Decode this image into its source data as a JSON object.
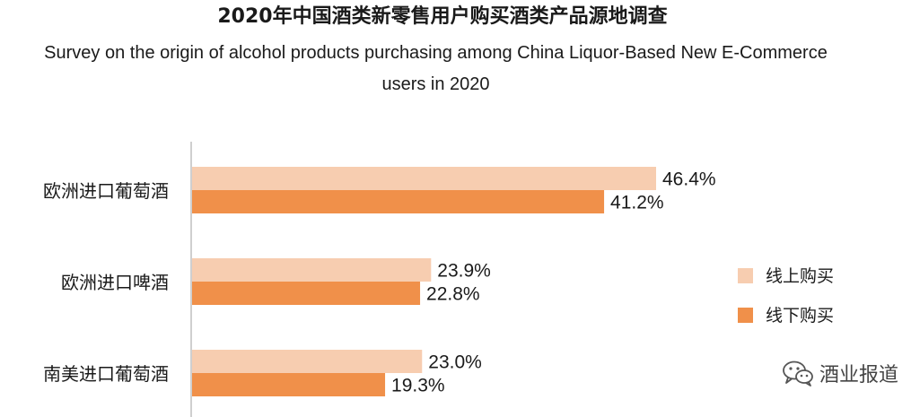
{
  "title": "2020年中国酒类新零售用户购买酒类产品源地调查",
  "subtitle": "Survey on the origin of alcohol products purchasing among China Liquor-Based New E-Commerce users in 2020",
  "watermark": "酒业报道",
  "chart_data": {
    "type": "bar",
    "orientation": "horizontal",
    "categories": [
      "欧洲进口葡萄酒",
      "欧洲进口啤酒",
      "南美进口葡萄酒"
    ],
    "series": [
      {
        "name": "线上购买",
        "values": [
          46.4,
          23.9,
          23.0
        ],
        "labels": [
          "46.4%",
          "23.9%",
          "23.0%"
        ],
        "color": "#F7CDB0"
      },
      {
        "name": "线下购买",
        "values": [
          41.2,
          22.8,
          19.3
        ],
        "labels": [
          "41.2%",
          "22.8%",
          "19.3%"
        ],
        "color": "#F0904A"
      }
    ],
    "value_unit": "%",
    "xlim": [
      0,
      70
    ],
    "grid": false,
    "legend_position": "right"
  }
}
